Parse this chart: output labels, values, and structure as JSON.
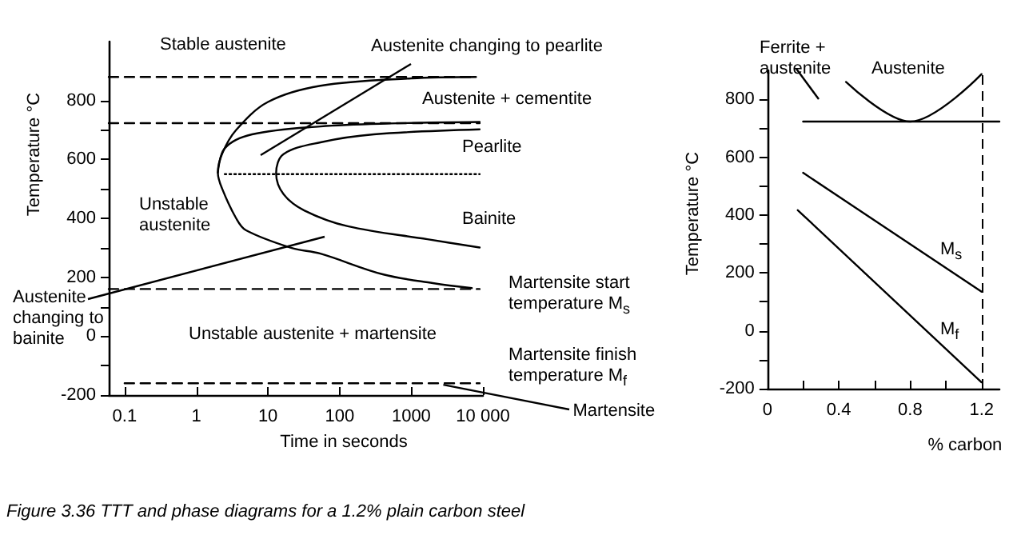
{
  "chart_data": [
    {
      "type": "line",
      "xlabel": "Time in seconds",
      "ylabel": "Temperature °C",
      "log": "x",
      "xlim": [
        0.06,
        10000
      ],
      "xticks": [
        0.1,
        1,
        10,
        100,
        1000,
        {
          "value": 10000,
          "label": "10 000"
        }
      ],
      "ylim": [
        -200,
        1000
      ],
      "yticks": [
        -200,
        {
          "value": -100,
          "label": null
        },
        0,
        {
          "value": 100,
          "label": null
        },
        200,
        {
          "value": 300,
          "label": null
        },
        400,
        {
          "value": 500,
          "label": null
        },
        600,
        {
          "value": 700,
          "label": null
        },
        800
      ],
      "series": [
        {
          "color": "#000000",
          "x": [
            8000,
            1000,
            54,
            10,
            3.6,
            2.3,
            2,
            2.3,
            3.6,
            4.9,
            21,
            54,
            400,
            2000,
            7000
          ],
          "values": [
            880,
            875,
            850,
            795,
            700,
            620,
            555,
            500,
            400,
            360,
            300,
            280,
            210,
            180,
            163
          ]
        },
        {
          "color": "#000000",
          "x": [
            2,
            2.5,
            6,
            54,
            500,
            9000
          ],
          "values": [
            555,
            638,
            685,
            712,
            722,
            727
          ]
        },
        {
          "color": "#000000",
          "x": [
            9000,
            300,
            54,
            16.5,
            13,
            16.5,
            32,
            130,
            1680,
            9000
          ],
          "values": [
            702,
            685,
            658,
            618,
            553,
            482,
            427,
            373,
            329,
            301
          ]
        },
        {
          "color": "#000000",
          "line_style": "dashed",
          "x": [
            0.06,
            8000
          ],
          "values": [
            880,
            880
          ]
        },
        {
          "color": "#000000",
          "line_style": "dashed",
          "x": [
            0.06,
            9000
          ],
          "values": [
            723,
            723
          ]
        },
        {
          "color": "#000000",
          "line_style": "dotted",
          "x": [
            2.5,
            9000
          ],
          "values": [
            550,
            550
          ]
        },
        {
          "color": "#000000",
          "line_style": "dashed",
          "x": [
            0.06,
            9000
          ],
          "values": [
            160,
            160
          ]
        },
        {
          "color": "#000000",
          "line_style": "dashed",
          "x": [
            0.1,
            9000
          ],
          "values": [
            -160,
            -160
          ]
        }
      ],
      "annotations": [
        "Stable austenite",
        "Austenite changing to pearlite",
        "Austenite + cementite",
        "Pearlite",
        "Unstable austenite",
        "Bainite",
        "Martensite start temperature M$_{s}$",
        "Austenite changing to bainite",
        "Unstable austenite + martensite",
        "Martensite finish temperature M$_{f}$",
        {
          "text": "Martensite",
          "x": 2800,
          "y": -165
        },
        "Figure 3.36   TTT and phase diagrams for a 1.2% plain carbon steel"
      ]
    },
    {
      "type": "line",
      "xlabel": "% carbon",
      "ylabel": "Temperature °C",
      "xlim": [
        0,
        1.3
      ],
      "xticks": [
        0,
        {
          "value": 0.2,
          "label": null
        },
        0.4,
        {
          "value": 0.6,
          "label": null
        },
        0.8,
        {
          "value": 1.0,
          "label": null
        },
        1.2
      ],
      "ylim": [
        -200,
        900
      ],
      "yticks": [
        -200,
        {
          "value": -100,
          "label": null
        },
        0,
        {
          "value": 100,
          "label": null
        },
        200,
        {
          "value": 300,
          "label": null
        },
        400,
        {
          "value": 500,
          "label": null
        },
        600,
        {
          "value": 700,
          "label": null
        },
        800
      ],
      "series": [
        {
          "color": "#000000",
          "x": [
            0.2,
            1.3
          ],
          "values": [
            723,
            723
          ]
        },
        {
          "color": "#000000",
          "x": [
            0.44,
            0.8,
            1.2
          ],
          "values": [
            860,
            723,
            887
          ]
        },
        {
          "color": "#000000",
          "x": [
            0.2,
            1.2
          ],
          "values": [
            546,
            135
          ]
        },
        {
          "color": "#000000",
          "x": [
            0.17,
            1.2
          ],
          "values": [
            417,
            -178
          ]
        }
      ],
      "ref_lines": [
        {
          "axis": "x",
          "value": 1.2,
          "color": "#000000",
          "line_style": "dashed"
        }
      ],
      "annotations": [
        "Ferrite + austenite",
        "Austenite",
        "M$_{s}$",
        "M$_{f}$"
      ]
    }
  ]
}
